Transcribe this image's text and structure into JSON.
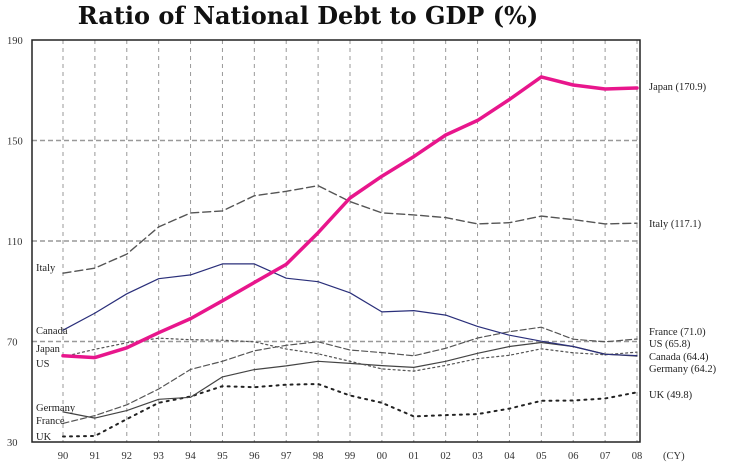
{
  "chart_data": {
    "type": "line",
    "title": "Ratio of National Debt to GDP (%)",
    "xlabel": "",
    "ylabel": "",
    "x_unit_label": "(CY)",
    "categories": [
      "90",
      "91",
      "92",
      "93",
      "94",
      "95",
      "96",
      "97",
      "98",
      "99",
      "00",
      "01",
      "02",
      "03",
      "04",
      "05",
      "06",
      "07",
      "08"
    ],
    "yticks": [
      30,
      70,
      110,
      150,
      190
    ],
    "ylim": [
      30,
      190
    ],
    "grid": true,
    "series": [
      {
        "name": "Japan",
        "end_label": "Japan (170.9)",
        "start_label": "Japan",
        "color": "#e8168c",
        "width": 3.5,
        "dash": "",
        "values": [
          64.3,
          63.6,
          67.5,
          73.5,
          79.1,
          86.2,
          93.5,
          100.7,
          113.3,
          127.1,
          135.8,
          143.6,
          152.2,
          158.0,
          166.3,
          175.3,
          172.1,
          170.5,
          170.9
        ]
      },
      {
        "name": "Italy",
        "end_label": "Italy (117.1)",
        "start_label": "Italy",
        "color": "#555555",
        "width": 1.4,
        "dash": "8,4",
        "values": [
          97.2,
          99.2,
          104.8,
          115.6,
          121.2,
          122.0,
          128.0,
          129.8,
          132.0,
          125.7,
          121.2,
          120.4,
          119.3,
          116.8,
          117.3,
          119.9,
          118.5,
          116.8,
          117.1
        ]
      },
      {
        "name": "Canada",
        "end_label": "Canada (64.4)",
        "start_label": "Canada",
        "color": "#2a2f7a",
        "width": 1.2,
        "dash": "",
        "values": [
          74.5,
          81.3,
          89.0,
          95.0,
          96.5,
          100.9,
          100.9,
          95.2,
          93.8,
          89.4,
          81.8,
          82.3,
          80.5,
          76.0,
          72.5,
          70.1,
          68.0,
          64.9,
          64.4
        ]
      },
      {
        "name": "France",
        "end_label": "France (71.0)",
        "start_label": "France",
        "color": "#555555",
        "width": 1.2,
        "dash": "6,3",
        "values": [
          37.4,
          40.5,
          44.8,
          51.1,
          58.9,
          62.1,
          66.3,
          68.5,
          69.9,
          66.6,
          65.6,
          64.3,
          67.3,
          71.4,
          73.9,
          75.7,
          70.9,
          69.9,
          71.0
        ]
      },
      {
        "name": "US",
        "end_label": "US (65.8)",
        "start_label": "US",
        "color": "#555555",
        "width": 1.2,
        "dash": "2,3",
        "values": [
          63.9,
          66.9,
          69.5,
          71.3,
          70.7,
          70.5,
          69.9,
          67.0,
          65.1,
          62.1,
          59.1,
          58.2,
          60.5,
          63.2,
          64.5,
          67.1,
          65.5,
          64.7,
          65.8
        ]
      },
      {
        "name": "Germany",
        "end_label": "Germany (64.2)",
        "start_label": "Germany",
        "color": "#444444",
        "width": 1.2,
        "dash": "",
        "values": [
          42.0,
          39.5,
          42.5,
          47.0,
          47.8,
          55.9,
          58.8,
          60.3,
          62.1,
          61.3,
          60.4,
          59.7,
          62.1,
          65.3,
          68.0,
          69.6,
          68.0,
          65.0,
          64.2
        ]
      },
      {
        "name": "UK",
        "end_label": "UK (49.8)",
        "start_label": "UK",
        "color": "#222222",
        "width": 2.0,
        "dash": "2,5",
        "values": [
          32.2,
          32.4,
          39.1,
          45.6,
          48.1,
          52.2,
          51.8,
          52.8,
          53.1,
          48.5,
          45.6,
          40.2,
          40.7,
          41.1,
          43.3,
          46.4,
          46.5,
          47.3,
          49.8
        ]
      }
    ]
  }
}
